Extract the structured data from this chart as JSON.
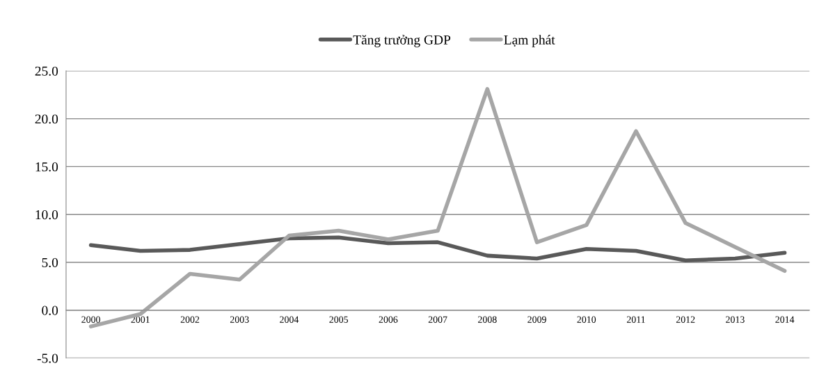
{
  "chart_data": {
    "type": "line",
    "categories": [
      "2000",
      "2001",
      "2002",
      "2003",
      "2004",
      "2005",
      "2006",
      "2007",
      "2008",
      "2009",
      "2010",
      "2011",
      "2012",
      "2013",
      "2014"
    ],
    "series": [
      {
        "name": "Tăng trưởng GDP",
        "color": "#595959",
        "values": [
          6.8,
          6.2,
          6.3,
          6.9,
          7.5,
          7.6,
          7.0,
          7.1,
          5.7,
          5.4,
          6.4,
          6.2,
          5.2,
          5.4,
          6.0
        ]
      },
      {
        "name": "Lạm phát",
        "color": "#a6a6a6",
        "values": [
          -1.7,
          -0.4,
          3.8,
          3.2,
          7.8,
          8.3,
          7.4,
          8.3,
          23.1,
          7.1,
          8.9,
          18.7,
          9.1,
          6.6,
          4.1
        ]
      }
    ],
    "ylim": [
      -5,
      25
    ],
    "yticks": [
      {
        "value": -5,
        "label": "-5.0"
      },
      {
        "value": 0,
        "label": "0.0"
      },
      {
        "value": 5,
        "label": "5.0"
      },
      {
        "value": 10,
        "label": "10.0"
      },
      {
        "value": 15,
        "label": "15.0"
      },
      {
        "value": 20,
        "label": "20.0"
      },
      {
        "value": 25,
        "label": "25.0"
      }
    ],
    "grid": "y",
    "legend": "top",
    "marker": "none",
    "line_style": "solid"
  }
}
